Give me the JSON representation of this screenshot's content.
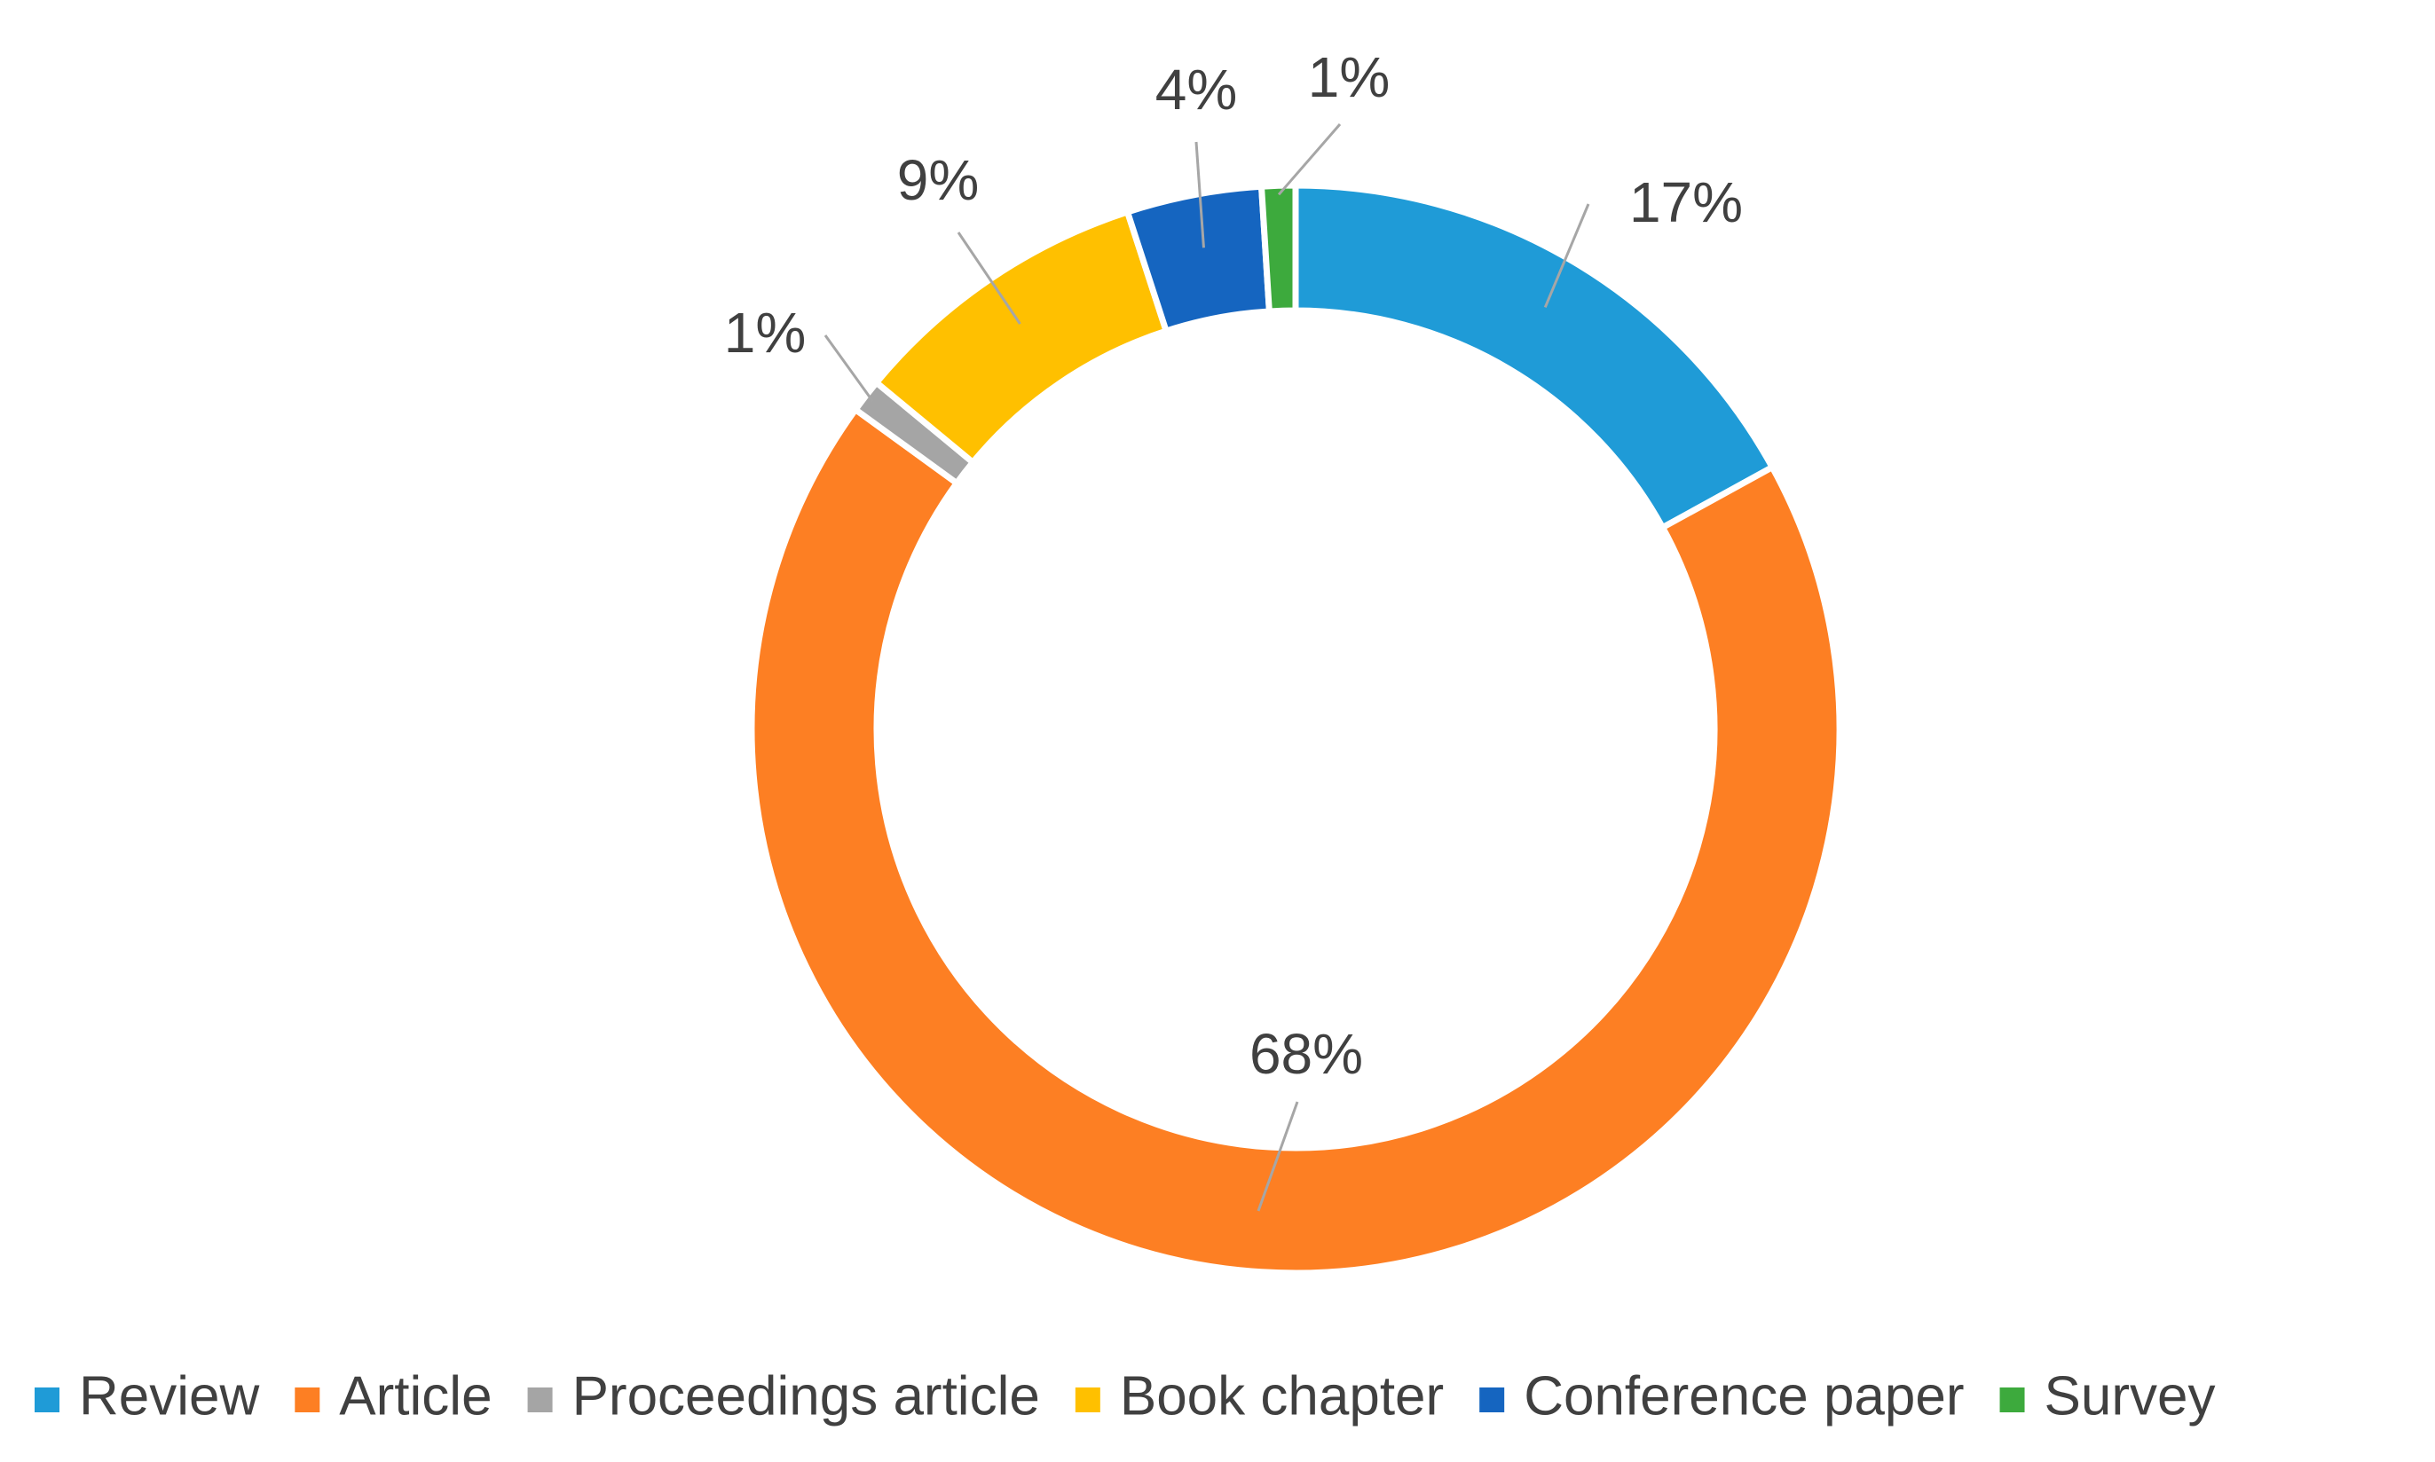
{
  "chart_data": {
    "type": "donut",
    "categories": [
      "Review",
      "Article",
      "Proceedings article",
      "Book chapter",
      "Conference paper",
      "Survey"
    ],
    "values": [
      17,
      68,
      1,
      9,
      4,
      1
    ],
    "value_labels": [
      "17%",
      "68%",
      "1%",
      "9%",
      "4%",
      "1%"
    ],
    "colors": [
      "#1f9bd7",
      "#fd7f23",
      "#a5a5a5",
      "#ffc000",
      "#1565c0",
      "#3daa3d"
    ],
    "legend": "bottom"
  }
}
